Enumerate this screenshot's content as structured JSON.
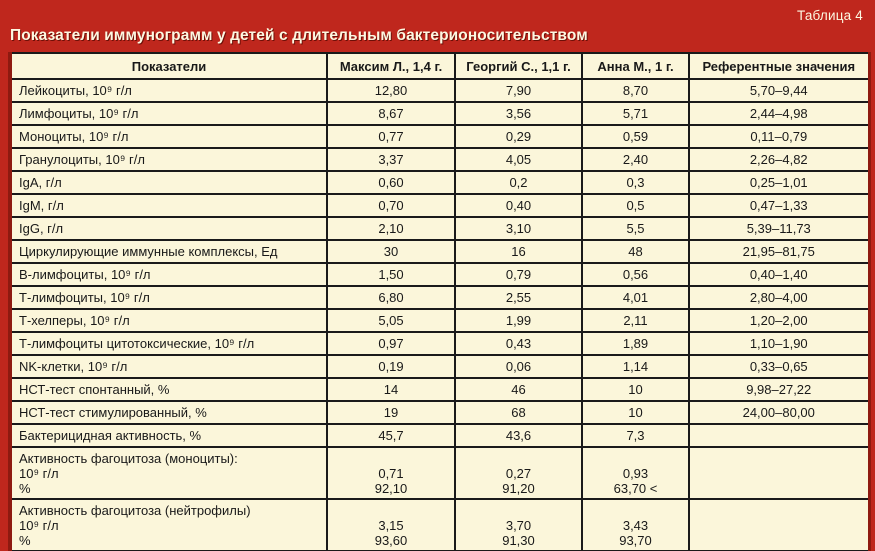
{
  "header": {
    "table_label": "Таблица 4",
    "title": "Показатели иммунограмм у детей с длительным бактерионосительством"
  },
  "colors": {
    "page_background_red": "#bf271d",
    "cell_cream": "#fbf6da",
    "border_dark_red": "#8e1a10",
    "border_black": "#1a1a1a",
    "title_text": "#fdf8e2"
  },
  "table": {
    "columns": [
      "Показатели",
      "Максим Л., 1,4 г.",
      "Георгий С., 1,1 г.",
      "Анна М., 1 г.",
      "Референтные значения"
    ],
    "rows": [
      {
        "label": "Лейкоциты, 10⁹ г/л",
        "values": [
          "12,80",
          "7,90",
          "8,70",
          "5,70–9,44"
        ]
      },
      {
        "label": "Лимфоциты, 10⁹ г/л",
        "values": [
          "8,67",
          "3,56",
          "5,71",
          "2,44–4,98"
        ]
      },
      {
        "label": "Моноциты, 10⁹ г/л",
        "values": [
          "0,77",
          "0,29",
          "0,59",
          "0,11–0,79"
        ]
      },
      {
        "label": "Гранулоциты, 10⁹ г/л",
        "values": [
          "3,37",
          "4,05",
          "2,40",
          "2,26–4,82"
        ]
      },
      {
        "label": "IgA, г/л",
        "values": [
          "0,60",
          "0,2",
          "0,3",
          "0,25–1,01"
        ]
      },
      {
        "label": "IgM, г/л",
        "values": [
          "0,70",
          "0,40",
          "0,5",
          "0,47–1,33"
        ]
      },
      {
        "label": "IgG, г/л",
        "values": [
          "2,10",
          "3,10",
          "5,5",
          "5,39–11,73"
        ]
      },
      {
        "label": "Циркулирующие иммунные комплексы, Ед",
        "values": [
          "30",
          "16",
          "48",
          "21,95–81,75"
        ]
      },
      {
        "label": "В-лимфоциты, 10⁹ г/л",
        "values": [
          "1,50",
          "0,79",
          "0,56",
          "0,40–1,40"
        ]
      },
      {
        "label": "Т-лимфоциты, 10⁹ г/л",
        "values": [
          "6,80",
          "2,55",
          "4,01",
          "2,80–4,00"
        ]
      },
      {
        "label": "Т-хелперы, 10⁹ г/л",
        "values": [
          "5,05",
          "1,99",
          "2,11",
          "1,20–2,00"
        ]
      },
      {
        "label": "Т-лимфоциты цитотоксические, 10⁹ г/л",
        "values": [
          "0,97",
          "0,43",
          "1,89",
          "1,10–1,90"
        ]
      },
      {
        "label": "NK-клетки, 10⁹ г/л",
        "values": [
          "0,19",
          "0,06",
          "1,14",
          "0,33–0,65"
        ]
      },
      {
        "label": "НСТ-тест спонтанный, %",
        "values": [
          "14",
          "46",
          "10",
          "9,98–27,22"
        ]
      },
      {
        "label": "НСТ-тест стимулированный, %",
        "values": [
          "19",
          "68",
          "10",
          "24,00–80,00"
        ]
      },
      {
        "label": "Бактерицидная активность, %",
        "values": [
          "45,7",
          "43,6",
          "7,3",
          ""
        ]
      },
      {
        "label": "Активность фагоцитоза (моноциты):\n10⁹ г/л\n%",
        "values": [
          "\n0,71\n92,10",
          "\n0,27\n91,20",
          "\n0,93\n63,70 <",
          ""
        ]
      },
      {
        "label": "Активность фагоцитоза (нейтрофилы)\n10⁹ г/л\n%",
        "values": [
          "\n3,15\n93,60",
          "\n3,70\n91,30",
          "\n3,43\n93,70",
          ""
        ]
      }
    ]
  }
}
